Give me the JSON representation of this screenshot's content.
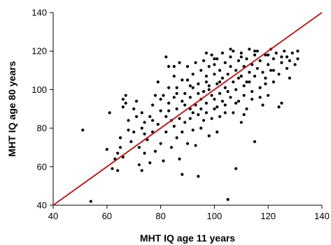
{
  "chart_data": {
    "type": "scatter",
    "title": "",
    "xlabel": "MHT IQ age 11 years",
    "ylabel": "MHT IQ age 80 years",
    "xlim": [
      40,
      140
    ],
    "ylim": [
      40,
      140
    ],
    "xticks": [
      "40",
      "60",
      "80",
      "100",
      "120",
      "140"
    ],
    "yticks": [
      "40",
      "60",
      "80",
      "100",
      "120",
      "140"
    ],
    "grid": false,
    "legend": "none",
    "reference_line": {
      "x": [
        40,
        140
      ],
      "y": [
        40,
        140
      ],
      "color": "#b22222"
    },
    "marker_color": "#000000",
    "points": [
      [
        51,
        79
      ],
      [
        54,
        42
      ],
      [
        60,
        69
      ],
      [
        61,
        88
      ],
      [
        62,
        59
      ],
      [
        63,
        64
      ],
      [
        64,
        58
      ],
      [
        64,
        67
      ],
      [
        65,
        70
      ],
      [
        65,
        75
      ],
      [
        66,
        91
      ],
      [
        66,
        95
      ],
      [
        67,
        97
      ],
      [
        67,
        93
      ],
      [
        68,
        84
      ],
      [
        69,
        73
      ],
      [
        70,
        78
      ],
      [
        70,
        90
      ],
      [
        71,
        94
      ],
      [
        72,
        61
      ],
      [
        72,
        70
      ],
      [
        73,
        58
      ],
      [
        73,
        80
      ],
      [
        73,
        88
      ],
      [
        74,
        67
      ],
      [
        74,
        83
      ],
      [
        75,
        74
      ],
      [
        76,
        62
      ],
      [
        76,
        86
      ],
      [
        77,
        92
      ],
      [
        77,
        78
      ],
      [
        78,
        68
      ],
      [
        78,
        97
      ],
      [
        79,
        82
      ],
      [
        79,
        104
      ],
      [
        80,
        72
      ],
      [
        80,
        89
      ],
      [
        81,
        97
      ],
      [
        81,
        63
      ],
      [
        82,
        78
      ],
      [
        82,
        86
      ],
      [
        83,
        93
      ],
      [
        83,
        101
      ],
      [
        83,
        112
      ],
      [
        84,
        70
      ],
      [
        84,
        84
      ],
      [
        85,
        81
      ],
      [
        85,
        96
      ],
      [
        85,
        107
      ],
      [
        86,
        75
      ],
      [
        86,
        90
      ],
      [
        86,
        101
      ],
      [
        87,
        114
      ],
      [
        87,
        64
      ],
      [
        87,
        85
      ],
      [
        88,
        94
      ],
      [
        88,
        78
      ],
      [
        88,
        56
      ],
      [
        89,
        98
      ],
      [
        89,
        83
      ],
      [
        90,
        105
      ],
      [
        90,
        72
      ],
      [
        90,
        112
      ],
      [
        91,
        96
      ],
      [
        91,
        85
      ],
      [
        91,
        90
      ],
      [
        92,
        108
      ],
      [
        92,
        79
      ],
      [
        92,
        101
      ],
      [
        93,
        92
      ],
      [
        93,
        114
      ],
      [
        93,
        71
      ],
      [
        94,
        87
      ],
      [
        94,
        103
      ],
      [
        94,
        55
      ],
      [
        95,
        95
      ],
      [
        95,
        110
      ],
      [
        95,
        80
      ],
      [
        96,
        99
      ],
      [
        96,
        115
      ],
      [
        96,
        84
      ],
      [
        97,
        93
      ],
      [
        97,
        107
      ],
      [
        97,
        88
      ],
      [
        98,
        112
      ],
      [
        98,
        76
      ],
      [
        98,
        102
      ],
      [
        99,
        97
      ],
      [
        99,
        118
      ],
      [
        99,
        85
      ],
      [
        100,
        108
      ],
      [
        100,
        95
      ],
      [
        100,
        90
      ],
      [
        100,
        113
      ],
      [
        101,
        103
      ],
      [
        101,
        78
      ],
      [
        101,
        116
      ],
      [
        102,
        98
      ],
      [
        102,
        110
      ],
      [
        102,
        86
      ],
      [
        103,
        106
      ],
      [
        103,
        94
      ],
      [
        103,
        119
      ],
      [
        104,
        101
      ],
      [
        104,
        92
      ],
      [
        104,
        114
      ],
      [
        105,
        108
      ],
      [
        105,
        43
      ],
      [
        105,
        99
      ],
      [
        106,
        112
      ],
      [
        106,
        96
      ],
      [
        106,
        117
      ],
      [
        107,
        104
      ],
      [
        107,
        88
      ],
      [
        107,
        120
      ],
      [
        108,
        110
      ],
      [
        108,
        59
      ],
      [
        108,
        100
      ],
      [
        109,
        115
      ],
      [
        109,
        94
      ],
      [
        110,
        107
      ],
      [
        110,
        119
      ],
      [
        110,
        83
      ],
      [
        111,
        112
      ],
      [
        111,
        102
      ],
      [
        111,
        97
      ],
      [
        112,
        116
      ],
      [
        112,
        90
      ],
      [
        113,
        109
      ],
      [
        113,
        121
      ],
      [
        113,
        104
      ],
      [
        114,
        113
      ],
      [
        114,
        95
      ],
      [
        115,
        118
      ],
      [
        115,
        73
      ],
      [
        115,
        107
      ],
      [
        116,
        111
      ],
      [
        116,
        120
      ],
      [
        117,
        101
      ],
      [
        117,
        115
      ],
      [
        118,
        92
      ],
      [
        118,
        109
      ],
      [
        119,
        118
      ],
      [
        119,
        106
      ],
      [
        120,
        113
      ],
      [
        120,
        97
      ],
      [
        121,
        121
      ],
      [
        121,
        110
      ],
      [
        122,
        116
      ],
      [
        122,
        104
      ],
      [
        123,
        119
      ],
      [
        124,
        108
      ],
      [
        124,
        91
      ],
      [
        125,
        114
      ],
      [
        125,
        93
      ],
      [
        126,
        120
      ],
      [
        127,
        111
      ],
      [
        127,
        117
      ],
      [
        128,
        106
      ],
      [
        129,
        119
      ],
      [
        130,
        113
      ],
      [
        131,
        116
      ],
      [
        131,
        120
      ],
      [
        120,
        118
      ],
      [
        115,
        120
      ],
      [
        110,
        117
      ],
      [
        106,
        121
      ],
      [
        102,
        104
      ],
      [
        98,
        100
      ],
      [
        95,
        90
      ],
      [
        92,
        88
      ],
      [
        89,
        92
      ],
      [
        86,
        98
      ],
      [
        83,
        89
      ],
      [
        80,
        95
      ],
      [
        77,
        84
      ],
      [
        74,
        77
      ],
      [
        71,
        86
      ],
      [
        68,
        79
      ],
      [
        66,
        65
      ],
      [
        104,
        88
      ],
      [
        101,
        91
      ],
      [
        97,
        104
      ],
      [
        94,
        98
      ],
      [
        91,
        102
      ],
      [
        88,
        105
      ],
      [
        85,
        112
      ],
      [
        82,
        117
      ],
      [
        100,
        116
      ],
      [
        97,
        119
      ],
      [
        108,
        93
      ],
      [
        111,
        87
      ],
      [
        114,
        99
      ],
      [
        117,
        96
      ],
      [
        119,
        103
      ],
      [
        122,
        110
      ],
      [
        125,
        117
      ],
      [
        128,
        115
      ],
      [
        112,
        104
      ],
      [
        109,
        106
      ]
    ]
  }
}
